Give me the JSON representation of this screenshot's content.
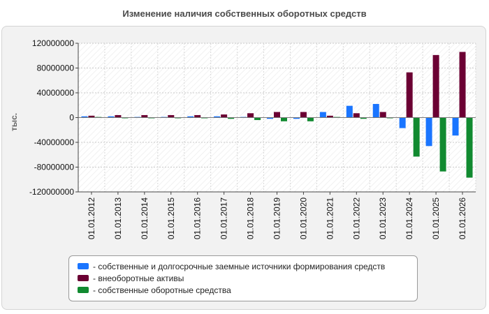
{
  "chart_data": {
    "type": "bar",
    "title": "Изменение наличия собственных оборотных средств",
    "ylabel": "тыс.",
    "xlabel": "",
    "ylim": [
      -120000000,
      120000000
    ],
    "yticks": [
      120000000,
      80000000,
      40000000,
      0,
      -40000000,
      -80000000,
      -120000000
    ],
    "ytick_labels": [
      "120000000",
      "80000000",
      "40000000",
      "0",
      "-40000000",
      "-80000000",
      "-120000000"
    ],
    "categories": [
      "01.01.2012",
      "01.01.2013",
      "01.01.2014",
      "01.01.2015",
      "01.01.2016",
      "01.01.2017",
      "01.01.2018",
      "01.01.2019",
      "01.01.2020",
      "01.01.2021",
      "01.01.2022",
      "01.01.2023",
      "01.01.2024",
      "01.01.2025",
      "01.01.2026"
    ],
    "series": [
      {
        "name": "собственные и долгосрочные заемные источники формирования средств",
        "color": "#1a75ff",
        "values": [
          2000000,
          2000000,
          1000000,
          1000000,
          2000000,
          2000000,
          1000000,
          -2000000,
          -2000000,
          9000000,
          19000000,
          22000000,
          -17000000,
          -46000000,
          -29000000
        ]
      },
      {
        "name": "внеоборотные активы",
        "color": "#6b0033",
        "values": [
          3000000,
          4000000,
          4000000,
          4000000,
          4000000,
          5000000,
          7000000,
          9000000,
          9000000,
          3000000,
          7000000,
          9000000,
          73000000,
          101000000,
          106000000
        ]
      },
      {
        "name": "собственные оборотные средства",
        "color": "#118a30",
        "values": [
          1000000,
          -1000000,
          -1000000,
          -1000000,
          -1000000,
          -2000000,
          -4000000,
          -6000000,
          -6000000,
          1000000,
          -2000000,
          -1000000,
          -63000000,
          -87000000,
          -97000000
        ]
      }
    ],
    "grid": true,
    "legend_position": "bottom"
  }
}
